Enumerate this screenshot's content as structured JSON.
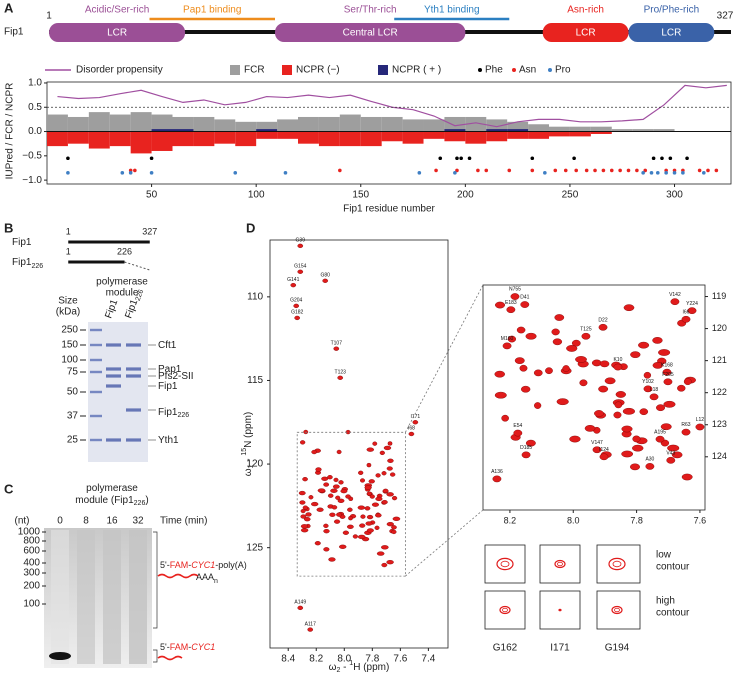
{
  "panel_labels": [
    "A",
    "B",
    "C",
    "D"
  ],
  "domain_map": {
    "protein": "Fip1",
    "start": 1,
    "end": 327,
    "domains": [
      {
        "name": "Acidic/Ser-rich",
        "label": "LCR",
        "range": [
          1,
          66
        ],
        "color": "#9b4f96"
      },
      {
        "name": "Ser/Thr-rich",
        "label": "Central LCR",
        "range": [
          109,
          200
        ],
        "color": "#9b4f96"
      },
      {
        "name": "Asn-rich",
        "label": "LCR",
        "range": [
          237,
          278
        ],
        "color": "#e8231f"
      },
      {
        "name": "Pro/Phe-rich",
        "label": "LCR",
        "range": [
          278,
          319
        ],
        "color": "#3a62a8"
      }
    ],
    "binding_regions": [
      {
        "name": "Pap1 binding",
        "range": [
          49,
          109
        ],
        "color": "#ee8c1c"
      },
      {
        "name": "Yth1 binding",
        "range": [
          166,
          221
        ],
        "color": "#2a7fc1"
      }
    ]
  },
  "chart_data": {
    "type": "bar",
    "x_label": "Fip1 residue number",
    "y_label": "IUPred / FCR / NCPR",
    "xlim": [
      0,
      327
    ],
    "xticks": [
      50,
      100,
      150,
      200,
      250,
      300
    ],
    "ylim": [
      -1.08,
      1.02
    ],
    "yticks": [
      {
        "value": 1,
        "label": "1.0"
      },
      0.5,
      {
        "value": 0,
        "label": "0.0"
      },
      {
        "value": -0.5,
        "label": "−0.5"
      },
      {
        "value": -1,
        "label": "−1.0"
      }
    ],
    "reference_line": 0.5,
    "x": [
      5,
      15,
      25,
      35,
      45,
      55,
      65,
      75,
      85,
      95,
      105,
      115,
      125,
      135,
      145,
      155,
      165,
      175,
      185,
      195,
      205,
      215,
      225,
      235,
      245,
      255,
      265,
      275,
      285,
      295,
      305,
      315,
      325
    ],
    "series": [
      {
        "name": "Disorder propensity",
        "type": "line",
        "color": "#a04fa0",
        "values": [
          0.72,
          0.68,
          0.7,
          0.78,
          0.85,
          0.72,
          0.6,
          0.65,
          0.55,
          0.6,
          0.72,
          0.7,
          0.75,
          0.7,
          0.75,
          0.62,
          0.5,
          0.45,
          0.32,
          0.12,
          0.18,
          0.1,
          0.2,
          0.25,
          0.25,
          0.2,
          0.2,
          0.22,
          0.25,
          0.55,
          0.95,
          0.9,
          0.95
        ]
      },
      {
        "name": "FCR",
        "type": "bar",
        "color": "#9e9e9e",
        "values": [
          0.35,
          0.3,
          0.4,
          0.35,
          0.4,
          0.35,
          0.3,
          0.3,
          0.25,
          0.2,
          0.2,
          0.25,
          0.3,
          0.3,
          0.35,
          0.3,
          0.3,
          0.25,
          0.25,
          0.3,
          0.3,
          0.25,
          0.2,
          0.15,
          0.1,
          0.1,
          0.1,
          0.05,
          0.05,
          0.05,
          0,
          0,
          0
        ]
      },
      {
        "name": "NCPR (−)",
        "type": "bar",
        "color": "#e8231f",
        "values": [
          -0.3,
          -0.25,
          -0.35,
          -0.3,
          -0.45,
          -0.4,
          -0.3,
          -0.3,
          -0.25,
          -0.3,
          -0.15,
          -0.15,
          -0.25,
          -0.3,
          -0.3,
          -0.3,
          -0.2,
          -0.25,
          -0.15,
          -0.2,
          -0.25,
          -0.2,
          -0.15,
          -0.15,
          -0.1,
          -0.1,
          -0.05,
          0,
          0,
          0,
          0,
          0,
          0
        ]
      },
      {
        "name": "NCPR ( + )",
        "type": "bar",
        "color": "#26287a",
        "values": [
          0,
          0,
          0,
          0,
          0,
          0.05,
          0.05,
          0,
          0,
          0,
          0.05,
          0,
          0,
          0,
          0,
          0,
          0,
          0,
          0,
          0.05,
          0,
          0.05,
          0.05,
          0,
          0,
          0,
          0,
          0,
          0,
          0,
          0,
          0,
          0
        ]
      },
      {
        "name": "Phe",
        "type": "scatter",
        "color": "#000000",
        "x": [
          10,
          50,
          188,
          196,
          198,
          202,
          232,
          252,
          290,
          294,
          298,
          306
        ],
        "values": [
          -0.55,
          -0.55,
          -0.55,
          -0.55,
          -0.55,
          -0.55,
          -0.55,
          -0.55,
          -0.55,
          -0.55,
          -0.55,
          -0.55
        ]
      },
      {
        "name": "Asn",
        "type": "scatter",
        "color": "#e8231f",
        "x": [
          40,
          42,
          140,
          186,
          196,
          206,
          210,
          221,
          232,
          243,
          248,
          253,
          258,
          262,
          266,
          270,
          274,
          278,
          282,
          286,
          296,
          300,
          304,
          312,
          316,
          320
        ],
        "values": [
          -0.8,
          -0.8,
          -0.8,
          -0.8,
          -0.8,
          -0.8,
          -0.8,
          -0.8,
          -0.8,
          -0.8,
          -0.8,
          -0.8,
          -0.8,
          -0.8,
          -0.8,
          -0.8,
          -0.8,
          -0.8,
          -0.8,
          -0.8,
          -0.8,
          -0.8,
          -0.8,
          -0.8,
          -0.8,
          -0.8
        ]
      },
      {
        "name": "Pro",
        "type": "scatter",
        "color": "#3f7fc4",
        "x": [
          10,
          36,
          40,
          50,
          90,
          114,
          178,
          195,
          238,
          285,
          289,
          292,
          296,
          300,
          304,
          314
        ],
        "values": [
          -0.85,
          -0.85,
          -0.85,
          -0.85,
          -0.85,
          -0.85,
          -0.85,
          -0.85,
          -0.85,
          -0.85,
          -0.85,
          -0.85,
          -0.85,
          -0.85,
          -0.85,
          -0.85
        ]
      }
    ]
  },
  "panel_b": {
    "constructs": [
      {
        "name": "Fip1",
        "start": 1,
        "end": 327
      },
      {
        "name": "Fip1",
        "sub": "226",
        "start": 1,
        "end": 226
      }
    ],
    "gel_header": [
      "polymerase",
      "module"
    ],
    "lanes": [
      {
        "name": "Fip1"
      },
      {
        "name": "Fip1",
        "sub": "226"
      }
    ],
    "size_label": [
      "Size",
      "(kDa)"
    ],
    "markers": [
      250,
      150,
      100,
      75,
      50,
      37,
      25
    ],
    "bands": [
      {
        "name": "Cft1"
      },
      {
        "name": "Pap1"
      },
      {
        "name": "Pfs2-SII"
      },
      {
        "name": "Fip1"
      },
      {
        "name": "Fip1",
        "sub": "226"
      },
      {
        "name": "Yth1"
      }
    ]
  },
  "panel_c": {
    "header": {
      "line1": "polymerase",
      "line2": "module (Fip1",
      "sub": "226",
      "close": ")"
    },
    "unit": "(nt)",
    "markers": [
      1000,
      800,
      600,
      400,
      300,
      200,
      100
    ],
    "times": [
      0,
      8,
      16,
      32
    ],
    "time_label": "Time (min)",
    "product_label": [
      "5'-",
      "FAM",
      "-",
      "CYC1",
      "-poly(A)"
    ],
    "tail": "AAA",
    "tail_sub": "n",
    "substrate_label": [
      "5'-",
      "FAM",
      "-",
      "CYC1"
    ]
  },
  "panel_d": {
    "main": {
      "x_label": [
        "ω",
        "2",
        " - ",
        "1",
        "H (ppm)"
      ],
      "y_label": [
        "ω",
        "1",
        " - ",
        "15",
        "N (ppm)"
      ],
      "xlim": [
        8.53,
        7.26
      ],
      "xticks": [
        8.4,
        8.2,
        {
          "value": 8,
          "label": "8.0"
        },
        7.8,
        7.6,
        7.4
      ],
      "ylim": [
        106.6,
        131
      ],
      "yticks": [
        110,
        115,
        120,
        125
      ],
      "zoom_region": {
        "h": [
          8.336,
          7.564
        ],
        "n": [
          118.1,
          126.7
        ]
      },
      "peaks": [
        {
          "label": "G39",
          "h": 8.314,
          "n": 106.95
        },
        {
          "label": "G154",
          "h": 8.314,
          "n": 108.5
        },
        {
          "label": "G80",
          "h": 8.136,
          "n": 109.04
        },
        {
          "label": "G141",
          "h": 8.364,
          "n": 109.3
        },
        {
          "label": "G204",
          "h": 8.343,
          "n": 110.54
        },
        {
          "label": "G182",
          "h": 8.336,
          "n": 111.26
        },
        {
          "label": "T107",
          "h": 8.057,
          "n": 113.1
        },
        {
          "label": "T123",
          "h": 8.029,
          "n": 114.84
        },
        {
          "label": "I171",
          "h": 7.493,
          "n": 117.5
        },
        {
          "label": "I68",
          "h": 7.521,
          "n": 118.2
        },
        {
          "label": "A149",
          "h": 8.314,
          "n": 128.6
        },
        {
          "label": "A117",
          "h": 8.243,
          "n": 129.9
        }
      ]
    },
    "inset": {
      "xlim": [
        8.285,
        7.584
      ],
      "xticks": [
        8.2,
        {
          "value": 8,
          "label": "8.0"
        },
        7.8,
        7.6
      ],
      "ylim": [
        118.64,
        125.66
      ],
      "yticks": [
        119,
        120,
        121,
        122,
        123,
        124
      ],
      "peaks": [
        {
          "label": "N755",
          "h": 8.184,
          "n": 119.0
        },
        {
          "label": "D41",
          "h": 8.153,
          "n": 119.25
        },
        {
          "label": "E183",
          "h": 8.197,
          "n": 119.41
        },
        {
          "label": "V142",
          "h": 7.679,
          "n": 119.16
        },
        {
          "label": "Y224",
          "h": 7.625,
          "n": 119.44
        },
        {
          "label": "I66",
          "h": 7.644,
          "n": 119.71
        },
        {
          "label": "D22",
          "h": 7.906,
          "n": 119.96
        },
        {
          "label": "T125",
          "h": 7.96,
          "n": 120.24
        },
        {
          "label": "M160",
          "h": 8.209,
          "n": 120.54
        },
        {
          "label": "K10",
          "h": 7.859,
          "n": 121.2
        },
        {
          "label": "K168",
          "h": 7.704,
          "n": 121.36
        },
        {
          "label": "F205",
          "h": 7.701,
          "n": 121.66
        },
        {
          "label": "Y102",
          "h": 7.764,
          "n": 121.88
        },
        {
          "label": "L18",
          "h": 7.745,
          "n": 122.13
        },
        {
          "label": "L12",
          "h": 7.6,
          "n": 123.07
        },
        {
          "label": "R63",
          "h": 7.644,
          "n": 123.23
        },
        {
          "label": "E54",
          "h": 8.175,
          "n": 123.26
        },
        {
          "label": "A195",
          "h": 7.726,
          "n": 123.45
        },
        {
          "label": "V147",
          "h": 7.925,
          "n": 123.78
        },
        {
          "label": "D185",
          "h": 8.149,
          "n": 123.94
        },
        {
          "label": "I124",
          "h": 7.903,
          "n": 124.0
        },
        {
          "label": "V43",
          "h": 7.692,
          "n": 124.11
        },
        {
          "label": "A30",
          "h": 7.758,
          "n": 124.3
        },
        {
          "label": "A136",
          "h": 8.241,
          "n": 124.69
        }
      ]
    },
    "contours": {
      "rows": [
        [
          "low",
          "contour"
        ],
        [
          "high",
          "contour"
        ]
      ],
      "residues": [
        "G162",
        "I171",
        "G194"
      ]
    }
  }
}
